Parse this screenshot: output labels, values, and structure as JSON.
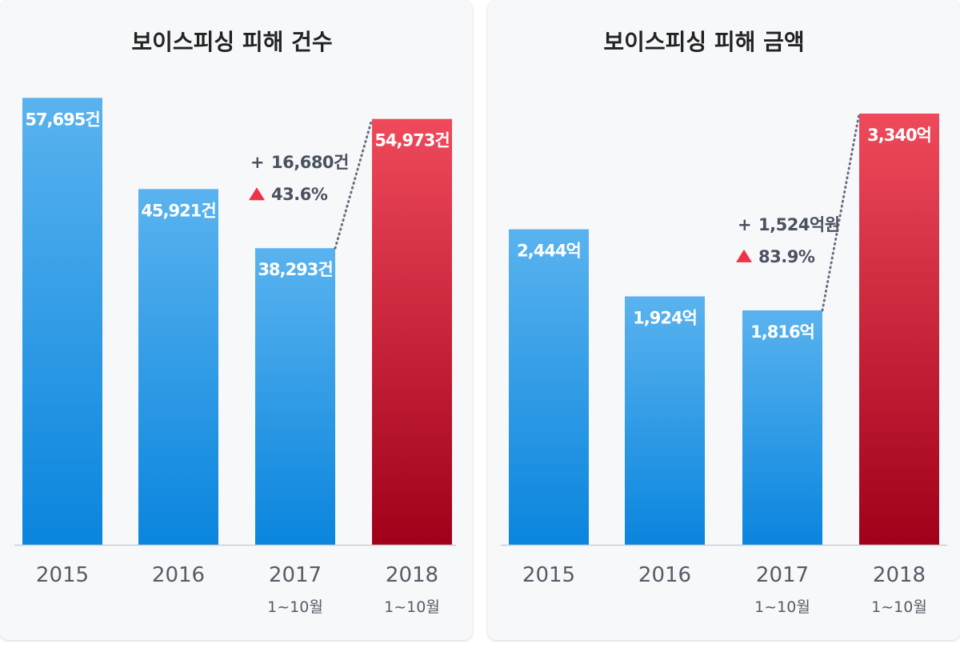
{
  "chart_data": [
    {
      "type": "bar",
      "title": "보이스피싱 피해 건수",
      "categories": [
        "2015",
        "2016",
        "2017",
        "2018"
      ],
      "category_sublabels": [
        "",
        "",
        "1~10월",
        "1~10월"
      ],
      "values": [
        57695,
        45921,
        38293,
        54973
      ],
      "value_labels": [
        "57,695건",
        "45,921건",
        "38,293건",
        "54,973건"
      ],
      "unit": "건",
      "highlight_index": 3,
      "ylim": [
        0,
        60000
      ],
      "annotation": {
        "from_index": 2,
        "to_index": 3,
        "diff_label": "16,680건",
        "pct_label": "43.6%"
      }
    },
    {
      "type": "bar",
      "title": "보이스피싱 피해 금액",
      "categories": [
        "2015",
        "2016",
        "2017",
        "2018"
      ],
      "category_sublabels": [
        "",
        "",
        "1~10월",
        "1~10월"
      ],
      "values": [
        2444,
        1924,
        1816,
        3340
      ],
      "value_labels": [
        "2,444억",
        "1,924억",
        "1,816억",
        "3,340억"
      ],
      "unit": "억",
      "highlight_index": 3,
      "ylim": [
        0,
        3600
      ],
      "annotation": {
        "from_index": 2,
        "to_index": 3,
        "diff_label": "1,524억원",
        "pct_label": "83.9%"
      }
    }
  ],
  "colors": {
    "bar_blue_top": "#5ab3ef",
    "bar_blue_bottom": "#0a85dd",
    "bar_red_top": "#ef4a5b",
    "bar_red_bottom": "#a1001a",
    "increase_arrow": "#ee3346",
    "axis_line": "#c9ced6",
    "dotted_line": "#667080"
  },
  "annotation_symbols": {
    "plus": "+",
    "up_arrow": "▲"
  }
}
